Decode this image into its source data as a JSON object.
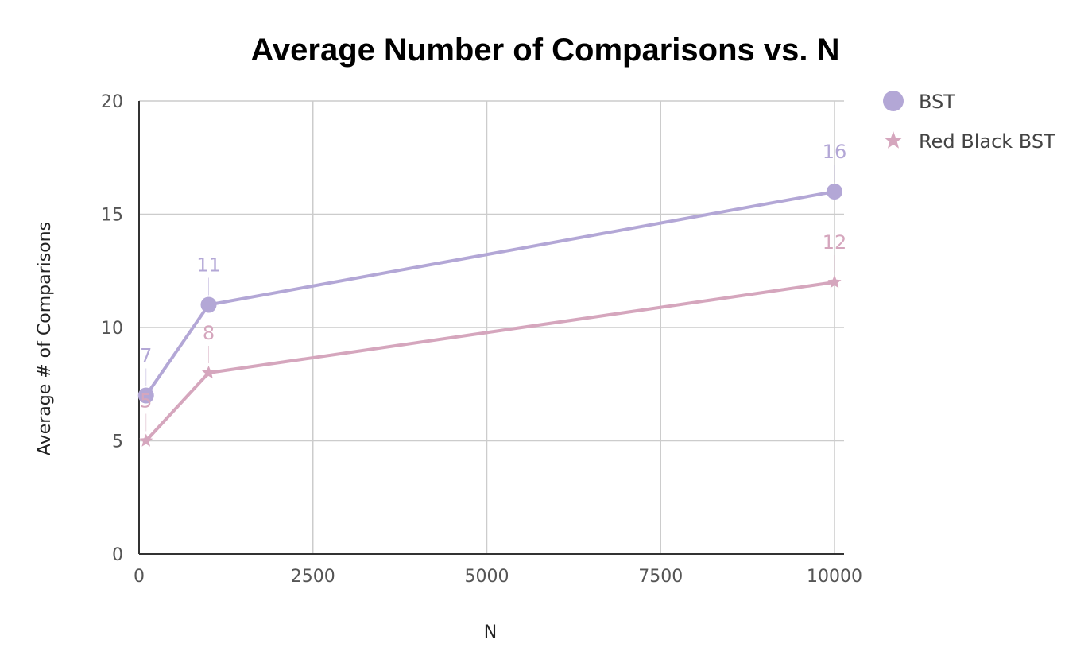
{
  "chart_data": {
    "type": "line",
    "title": "Average Number of Comparisons vs. N",
    "xlabel": "N",
    "ylabel": "Average # of Comparisons",
    "xlim": [
      0,
      10000
    ],
    "ylim": [
      0,
      20
    ],
    "x_ticks": [
      "0",
      "2500",
      "5000",
      "7500",
      "10000"
    ],
    "y_ticks": [
      "0",
      "5",
      "10",
      "15",
      "20"
    ],
    "grid": true,
    "legend_position": "right",
    "x": [
      100,
      1000,
      10000
    ],
    "series": [
      {
        "name": "BST",
        "values": [
          7,
          11,
          16
        ],
        "data_labels": [
          "7",
          "11",
          "16"
        ],
        "color": "#b3a7d6",
        "marker": "circle"
      },
      {
        "name": "Red Black BST",
        "values": [
          5,
          8,
          12
        ],
        "data_labels": [
          "5",
          "8",
          "12"
        ],
        "color": "#d5a6bd",
        "marker": "star"
      }
    ]
  }
}
